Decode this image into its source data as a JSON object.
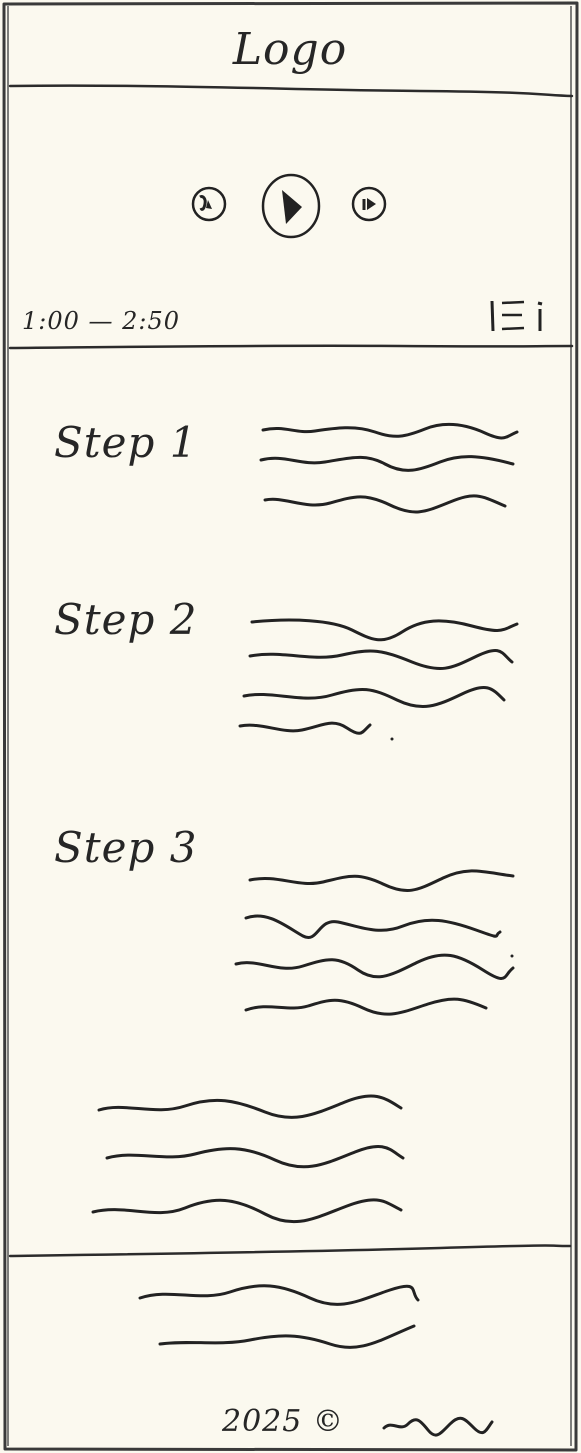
{
  "header": {
    "logo_text": "Logo"
  },
  "player": {
    "time_range": "1:00 — 2:50",
    "icons": {
      "rewind": "rewind-icon",
      "play": "play-icon",
      "forward": "forward-icon",
      "menu": "menu-icon"
    }
  },
  "steps": [
    {
      "title": "Step 1"
    },
    {
      "title": "Step 2"
    },
    {
      "title": "Step 3"
    }
  ],
  "footer": {
    "year": "2025 ©"
  },
  "colors": {
    "paper": "#fbf9ef",
    "ink": "#262626"
  }
}
